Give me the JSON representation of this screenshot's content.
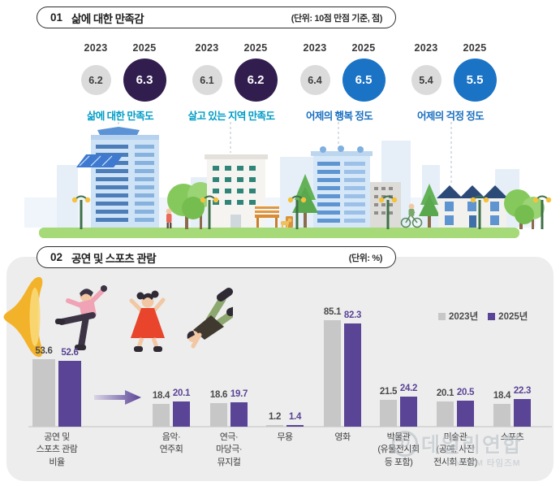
{
  "section1": {
    "number": "01",
    "title": "삶에 대한 만족감",
    "unit": "(단위: 10점 만점 기준, 점)",
    "metrics": [
      {
        "year_prev": "2023",
        "year_curr": "2025",
        "value_prev": "6.2",
        "value_curr": "6.3",
        "label": "삶에 대한 만족도",
        "circle_color": "#311e4f",
        "label_color": "#009cc6"
      },
      {
        "year_prev": "2023",
        "year_curr": "2025",
        "value_prev": "6.1",
        "value_curr": "6.2",
        "label": "살고 있는 지역 만족도",
        "circle_color": "#311e4f",
        "label_color": "#009cc6"
      },
      {
        "year_prev": "2023",
        "year_curr": "2025",
        "value_prev": "6.4",
        "value_curr": "6.5",
        "label": "어제의 행복 정도",
        "circle_color": "#1a73c4",
        "label_color": "#1a6fc0"
      },
      {
        "year_prev": "2023",
        "year_curr": "2025",
        "value_prev": "5.4",
        "value_curr": "5.5",
        "label": "어제의 걱정 정도",
        "circle_color": "#1a73c4",
        "label_color": "#1a6fc0"
      }
    ]
  },
  "section2": {
    "number": "02",
    "title": "공연 및 스포츠 관람",
    "unit": "(단위: %)"
  },
  "watermark": {
    "logo": "D",
    "text": "데일리연합",
    "subtext": "TIMESM 타임즈M"
  },
  "chart_data": [
    {
      "type": "bar",
      "title": "삶에 대한 만족감",
      "unit": "점(10점 만점 기준)",
      "categories": [
        "삶에 대한 만족도",
        "살고 있는 지역 만족도",
        "어제의 행복 정도",
        "어제의 걱정 정도"
      ],
      "series": [
        {
          "name": "2023",
          "values": [
            6.2,
            6.1,
            6.4,
            5.4
          ]
        },
        {
          "name": "2025",
          "values": [
            6.3,
            6.2,
            6.5,
            5.5
          ]
        }
      ],
      "ylim": [
        0,
        10
      ],
      "grid": false
    },
    {
      "type": "bar",
      "title": "공연 및 스포츠 관람",
      "unit": "%",
      "categories": [
        "공연 및 스포츠 관람 비율",
        "음악·연주회",
        "연극·마당극·뮤지컬",
        "무용",
        "영화",
        "박물관(유물전시회 등 포함)",
        "미술관(공예, 사진 전시회 포함)",
        "스포츠"
      ],
      "categories_lines": [
        [
          "공연 및",
          "스포츠 관람",
          "비율"
        ],
        [
          "음악·",
          "연주회"
        ],
        [
          "연극·",
          "마당극·",
          "뮤지컬"
        ],
        [
          "무용"
        ],
        [
          "영화"
        ],
        [
          "박물관",
          "(유물전시회",
          "등 포함)"
        ],
        [
          "미술관",
          "(공예, 사진",
          "전시회 포함)"
        ],
        [
          "스포츠"
        ]
      ],
      "series": [
        {
          "name": "2023년",
          "color": "#c7c7c7",
          "label_color": "#4a4a4a",
          "values": [
            53.6,
            18.4,
            18.6,
            1.2,
            85.1,
            21.5,
            20.1,
            18.4
          ]
        },
        {
          "name": "2025년",
          "color": "#5a4496",
          "label_color": "#5a4496",
          "values": [
            52.6,
            20.1,
            19.7,
            1.4,
            82.3,
            24.2,
            20.5,
            22.3
          ]
        }
      ],
      "ylim": [
        0,
        100
      ],
      "grid": false,
      "legend_position": "top-right"
    }
  ]
}
